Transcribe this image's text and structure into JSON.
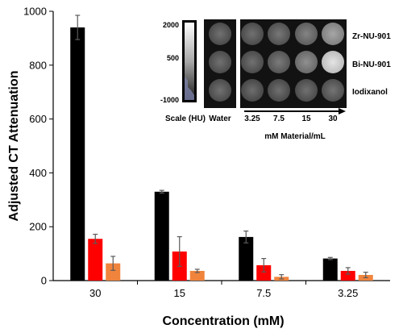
{
  "chart_data": {
    "type": "bar",
    "xlabel": "Concentration (mM)",
    "ylabel": "Adjusted CT Attenuation",
    "ylim": [
      0,
      1000
    ],
    "yticks": [
      0,
      200,
      400,
      600,
      800,
      1000
    ],
    "categories": [
      "30",
      "15",
      "7.5",
      "3.25"
    ],
    "series": [
      {
        "color": "#000000",
        "values": [
          940,
          330,
          162,
          82
        ],
        "errors": [
          45,
          5,
          22,
          4
        ]
      },
      {
        "color": "#ff0000",
        "values": [
          155,
          108,
          57,
          36
        ],
        "errors": [
          17,
          55,
          25,
          12
        ]
      },
      {
        "color": "#f0843c",
        "values": [
          64,
          36,
          14,
          21
        ],
        "errors": [
          26,
          6,
          8,
          10
        ]
      }
    ],
    "legend": "none",
    "grid": false
  },
  "inset": {
    "scale_ticks": [
      "2000",
      "500",
      "-1000"
    ],
    "scale_label": "Scale (HU)",
    "water_label": "Water",
    "row_labels": [
      "Zr-NU-901",
      "Bi-NU-901",
      "Iodixanol"
    ],
    "col_labels": [
      "3.25",
      "7.5",
      "15",
      "30"
    ],
    "concentration_label": "mM  Material/mL",
    "wells": [
      [
        0.1,
        0.14,
        0.22,
        0.45
      ],
      [
        0.1,
        0.16,
        0.3,
        0.85
      ],
      [
        0.08,
        0.09,
        0.1,
        0.12
      ]
    ],
    "water_wells": [
      0.1,
      0.1,
      0.1
    ]
  }
}
